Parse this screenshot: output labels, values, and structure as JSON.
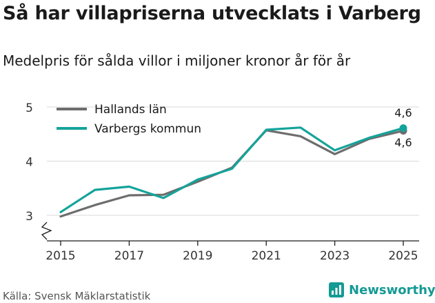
{
  "header": {
    "title": "Så har villapriserna utvecklats i Varberg",
    "subtitle": "Medelpris för sålda villor i miljoner kronor år för år"
  },
  "footer": {
    "source": "Källa: Svensk Mäklarstatistik",
    "brand": "Newsworthy"
  },
  "colors": {
    "hallands": "#6d6d6d",
    "varbergs": "#14a39a",
    "grid": "#d9d9d9",
    "axis": "#1a1a1a",
    "brand": "#149a94"
  },
  "chart_data": {
    "type": "line",
    "title": "Så har villapriserna utvecklats i Varberg",
    "subtitle": "Medelpris för sålda villor i miljoner kronor år för år",
    "xlabel": "",
    "ylabel": "",
    "x": [
      2015,
      2016,
      2017,
      2018,
      2019,
      2020,
      2021,
      2022,
      2023,
      2024,
      2025
    ],
    "xticks": [
      "2015",
      "2017",
      "2019",
      "2021",
      "2023",
      "2025"
    ],
    "yticks": [
      "3",
      "4",
      "5"
    ],
    "ylim": [
      2.55,
      5.05
    ],
    "legend_position": "top-left",
    "grid": true,
    "series": [
      {
        "name": "Hallands län",
        "color": "#6d6d6d",
        "values": [
          2.98,
          3.19,
          3.37,
          3.38,
          3.62,
          3.88,
          4.57,
          4.46,
          4.13,
          4.41,
          4.56
        ],
        "end_label": "4,6"
      },
      {
        "name": "Varbergs kommun",
        "color": "#14a39a",
        "values": [
          3.06,
          3.47,
          3.53,
          3.32,
          3.66,
          3.86,
          4.58,
          4.62,
          4.2,
          4.43,
          4.61
        ],
        "end_label": "4,6"
      }
    ]
  }
}
